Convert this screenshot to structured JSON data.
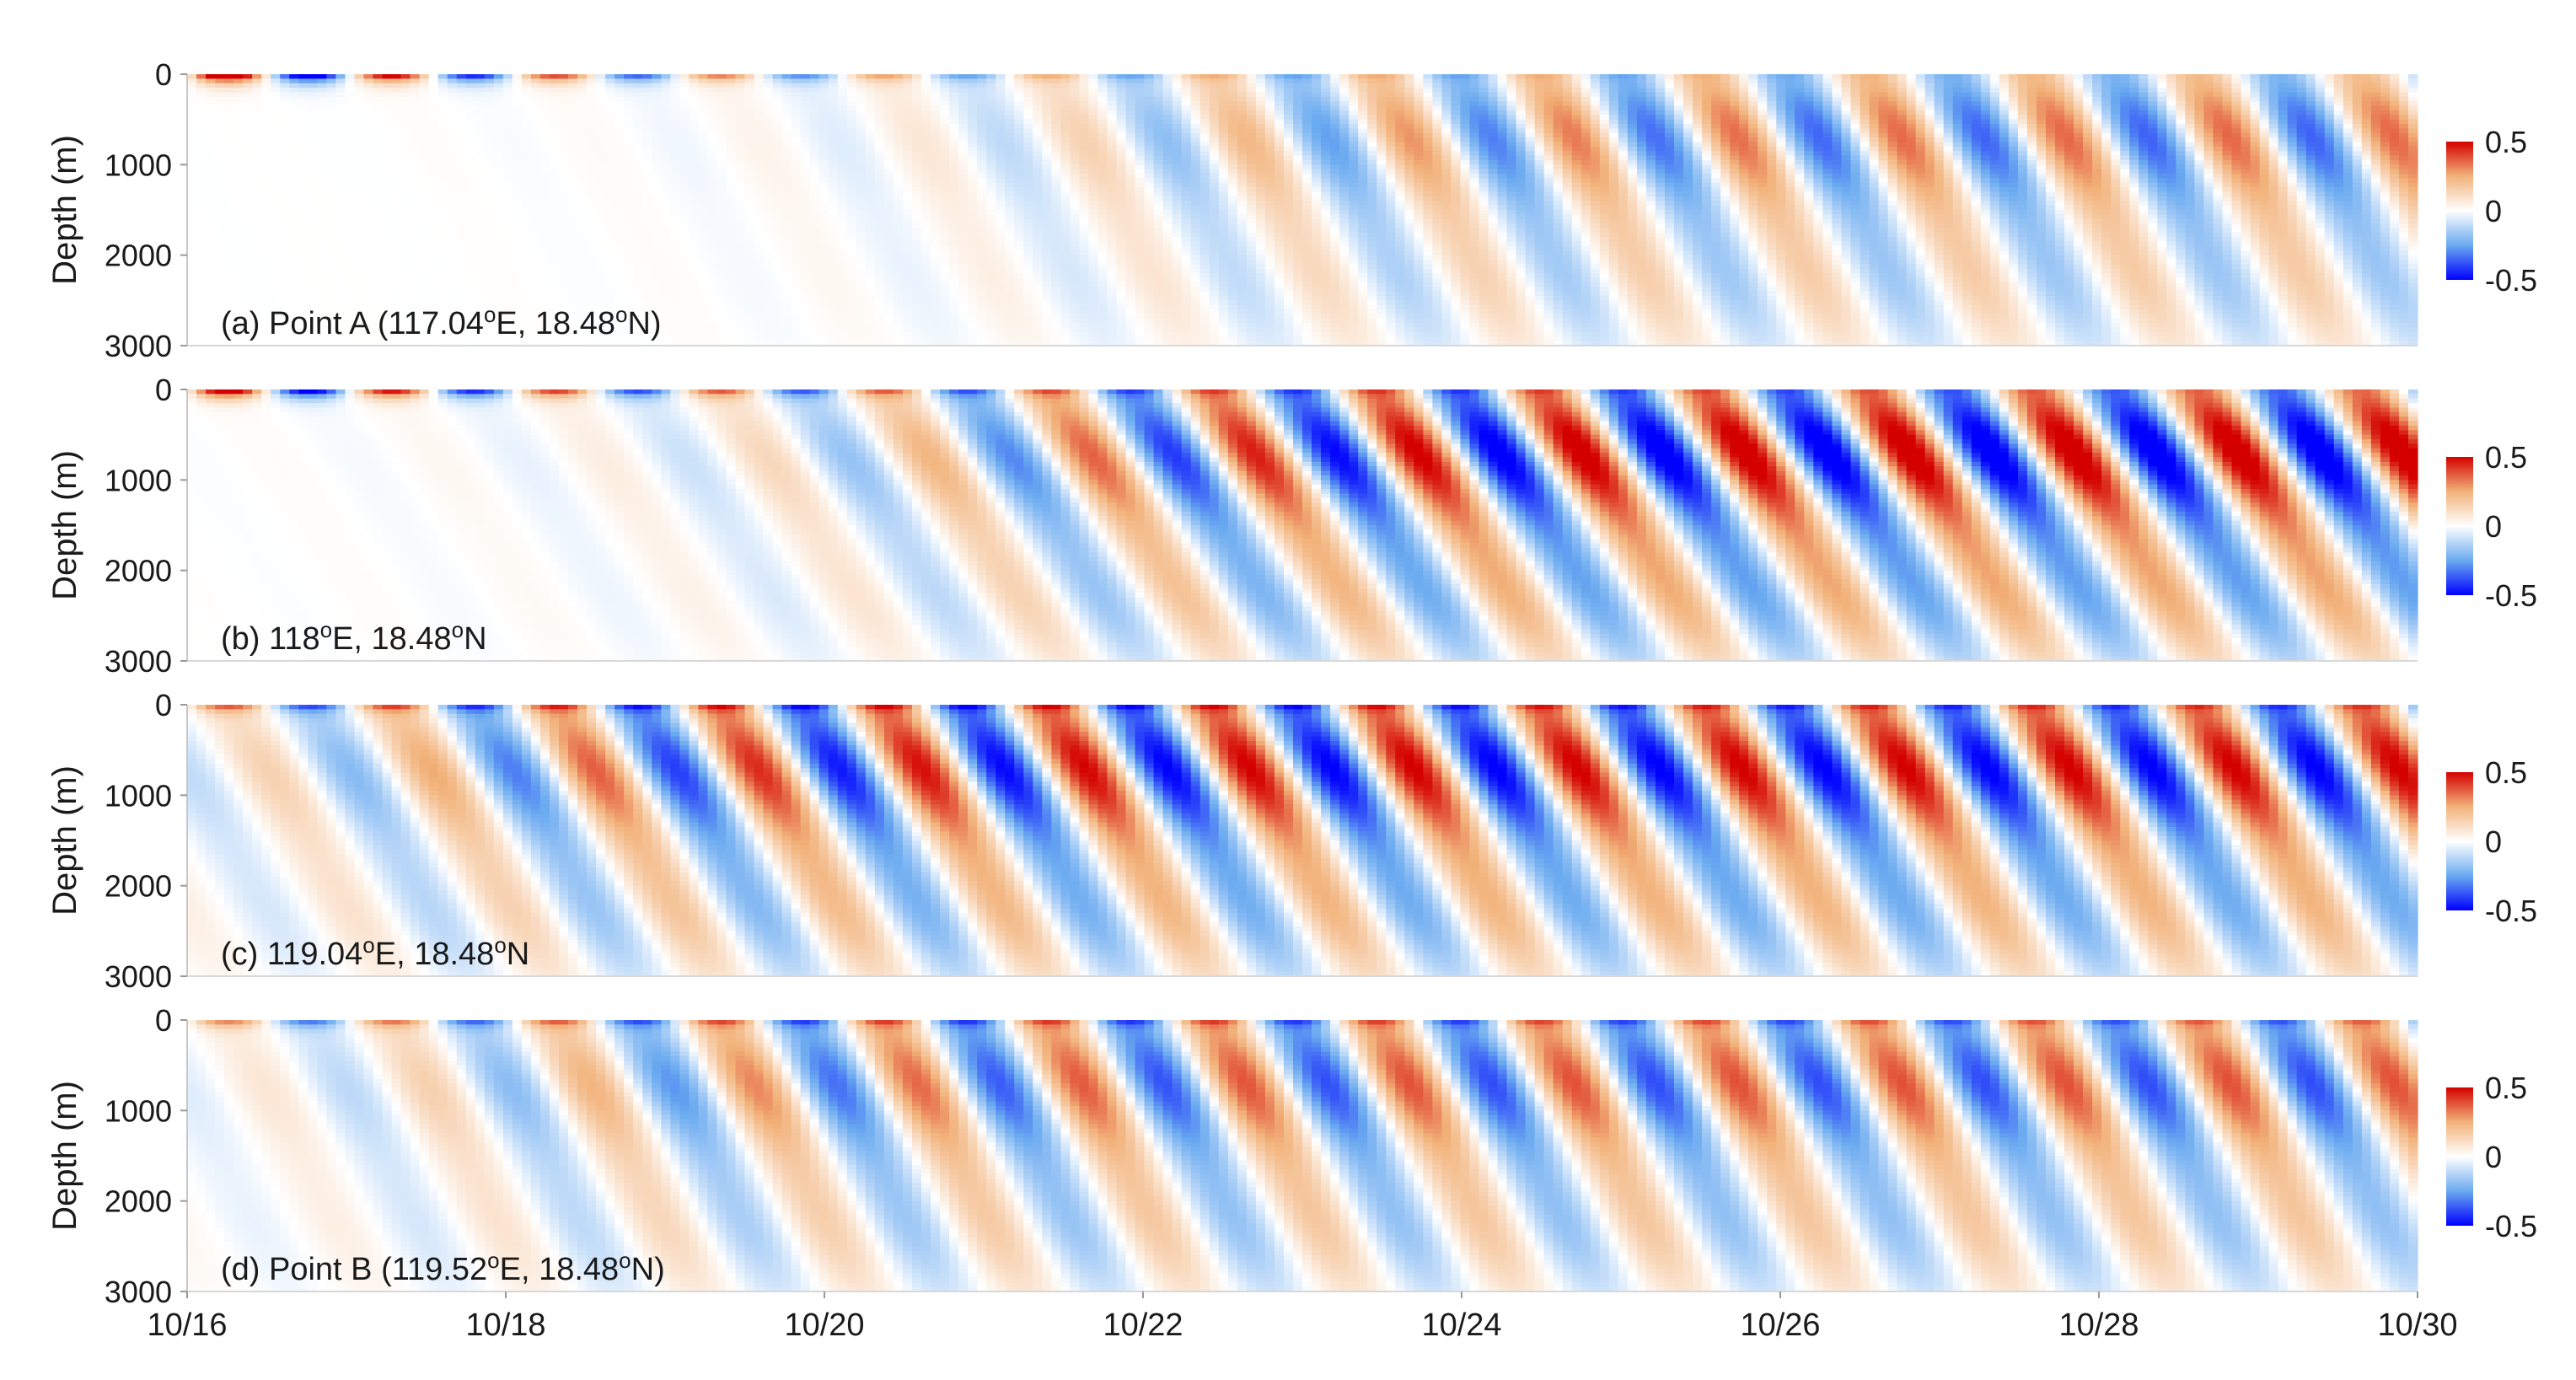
{
  "chart_data": [
    {
      "type": "heatmap",
      "label_prefix": "(a) Point A (117.04",
      "label_lon_sup": "o",
      "label_mid": "E, 18.48",
      "label_lat_sup": "o",
      "label_suffix": "N)",
      "ylabel": "Depth (m)",
      "ylim": [
        3000,
        0
      ],
      "yticks": [
        0,
        1000,
        2000,
        3000
      ],
      "xlim": [
        "10/16",
        "10/30"
      ],
      "colorbar": {
        "range": [
          -0.5,
          0.5
        ],
        "ticks": [
          "0.5",
          "0",
          "-0.5"
        ],
        "colors": [
          "#0000ff",
          "#ffffff",
          "#d40000"
        ]
      },
      "pattern": {
        "surface_amp": 1.0,
        "surface_decay": 0.25,
        "deep_amp": 0.35,
        "arrival_day": 6.0,
        "tilt": 1.6,
        "deep_bias": 0.0
      }
    },
    {
      "type": "heatmap",
      "label_prefix": "(b) 118",
      "label_lon_sup": "o",
      "label_mid": "E, 18.48",
      "label_lat_sup": "o",
      "label_suffix": "N",
      "ylabel": "Depth (m)",
      "ylim": [
        3000,
        0
      ],
      "yticks": [
        0,
        1000,
        2000,
        3000
      ],
      "xlim": [
        "10/16",
        "10/30"
      ],
      "colorbar": {
        "range": [
          -0.5,
          0.5
        ],
        "ticks": [
          "0.5",
          "0",
          "-0.5"
        ],
        "colors": [
          "#0000ff",
          "#ffffff",
          "#d40000"
        ]
      },
      "pattern": {
        "surface_amp": 0.85,
        "surface_decay": 0.18,
        "deep_amp": 0.55,
        "arrival_day": 5.0,
        "tilt": 2.0,
        "deep_bias": 0.0
      }
    },
    {
      "type": "heatmap",
      "label_prefix": "(c) 119.04",
      "label_lon_sup": "o",
      "label_mid": "E, 18.48",
      "label_lat_sup": "o",
      "label_suffix": "N",
      "ylabel": "Depth (m)",
      "ylim": [
        3000,
        0
      ],
      "yticks": [
        0,
        1000,
        2000,
        3000
      ],
      "xlim": [
        "10/16",
        "10/30"
      ],
      "colorbar": {
        "range": [
          -0.5,
          0.5
        ],
        "ticks": [
          "0.5",
          "0",
          "-0.5"
        ],
        "colors": [
          "#0000ff",
          "#ffffff",
          "#d40000"
        ]
      },
      "pattern": {
        "surface_amp": 0.45,
        "surface_decay": 0.05,
        "deep_amp": 0.5,
        "arrival_day": 1.5,
        "tilt": 1.8,
        "deep_bias": 0.0
      }
    },
    {
      "type": "heatmap",
      "label_prefix": "(d) Point B (119.52",
      "label_lon_sup": "o",
      "label_mid": "E, 18.48",
      "label_lat_sup": "o",
      "label_suffix": "N)",
      "ylabel": "Depth (m)",
      "ylim": [
        3000,
        0
      ],
      "yticks": [
        0,
        1000,
        2000,
        3000
      ],
      "xlim": [
        "10/16",
        "10/30"
      ],
      "colorbar": {
        "range": [
          -0.5,
          0.5
        ],
        "ticks": [
          "0.5",
          "0",
          "-0.5"
        ],
        "colors": [
          "#0000ff",
          "#ffffff",
          "#d40000"
        ]
      },
      "pattern": {
        "surface_amp": 0.4,
        "surface_decay": 0.04,
        "deep_amp": 0.38,
        "arrival_day": 2.0,
        "tilt": 1.6,
        "deep_bias": 0.0
      }
    }
  ],
  "x_axis": {
    "ticks": [
      "10/16",
      "10/18",
      "10/20",
      "10/22",
      "10/24",
      "10/26",
      "10/28",
      "10/30"
    ],
    "tick_days": [
      0,
      2,
      4,
      6,
      8,
      10,
      12,
      14
    ]
  }
}
